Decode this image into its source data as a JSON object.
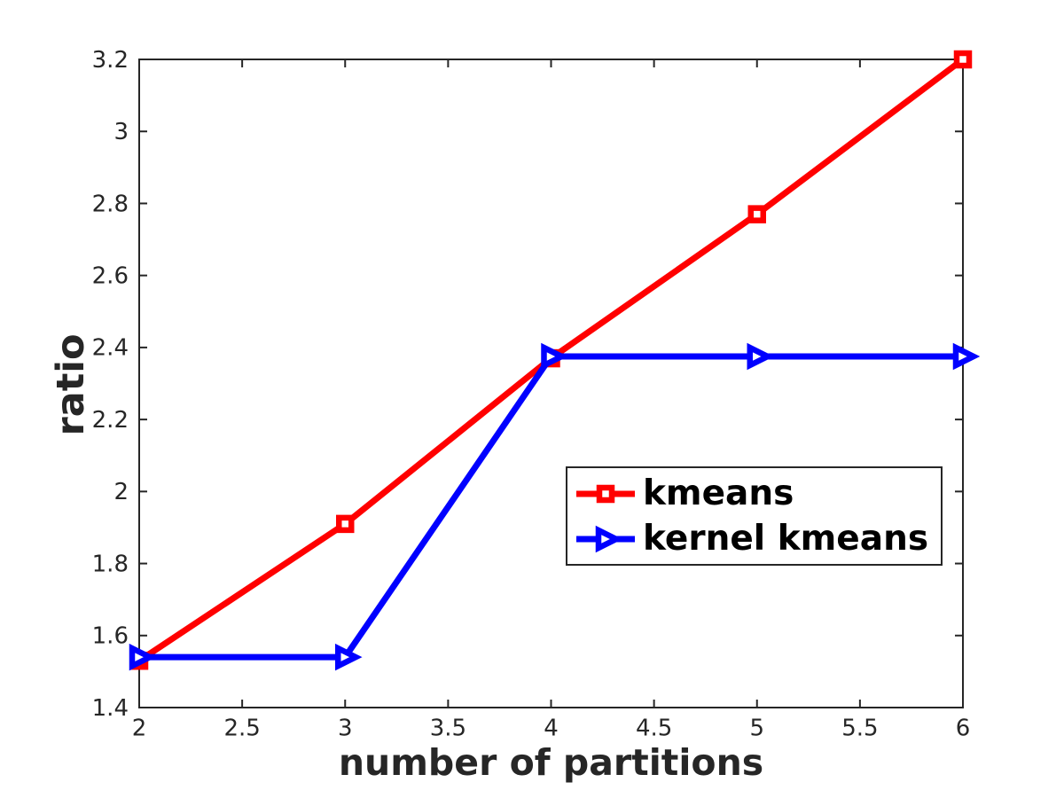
{
  "figure": {
    "background": "#ffffff",
    "axis_color": "#262626",
    "tick_label_color": "#262626",
    "legend_text_color": "#000000"
  },
  "chart_data": {
    "type": "line",
    "title": "",
    "xlabel": "number of partitions",
    "ylabel": "ratio",
    "xlim": [
      2,
      6
    ],
    "ylim": [
      1.4,
      3.2
    ],
    "xticks": [
      2,
      2.5,
      3,
      3.5,
      4,
      4.5,
      5,
      5.5,
      6
    ],
    "xtick_labels": [
      "2",
      "2.5",
      "3",
      "3.5",
      "4",
      "4.5",
      "5",
      "5.5",
      "6"
    ],
    "yticks": [
      1.4,
      1.6,
      1.8,
      2,
      2.2,
      2.4,
      2.6,
      2.8,
      3,
      3.2
    ],
    "ytick_labels": [
      "1.4",
      "1.6",
      "1.8",
      "2",
      "2.2",
      "2.4",
      "2.6",
      "2.8",
      "3",
      "3.2"
    ],
    "grid": false,
    "box": true,
    "legend_position": "inside-middle-right",
    "x": [
      2,
      3,
      4,
      5,
      6
    ],
    "series": [
      {
        "name": "kmeans",
        "color": "#ff0000",
        "marker": "square",
        "values": [
          1.53,
          1.91,
          2.37,
          2.77,
          3.2
        ]
      },
      {
        "name": "kernel kmeans",
        "color": "#0000ff",
        "marker": "triangle-right",
        "values": [
          1.54,
          1.54,
          2.375,
          2.375,
          2.375
        ]
      }
    ]
  }
}
